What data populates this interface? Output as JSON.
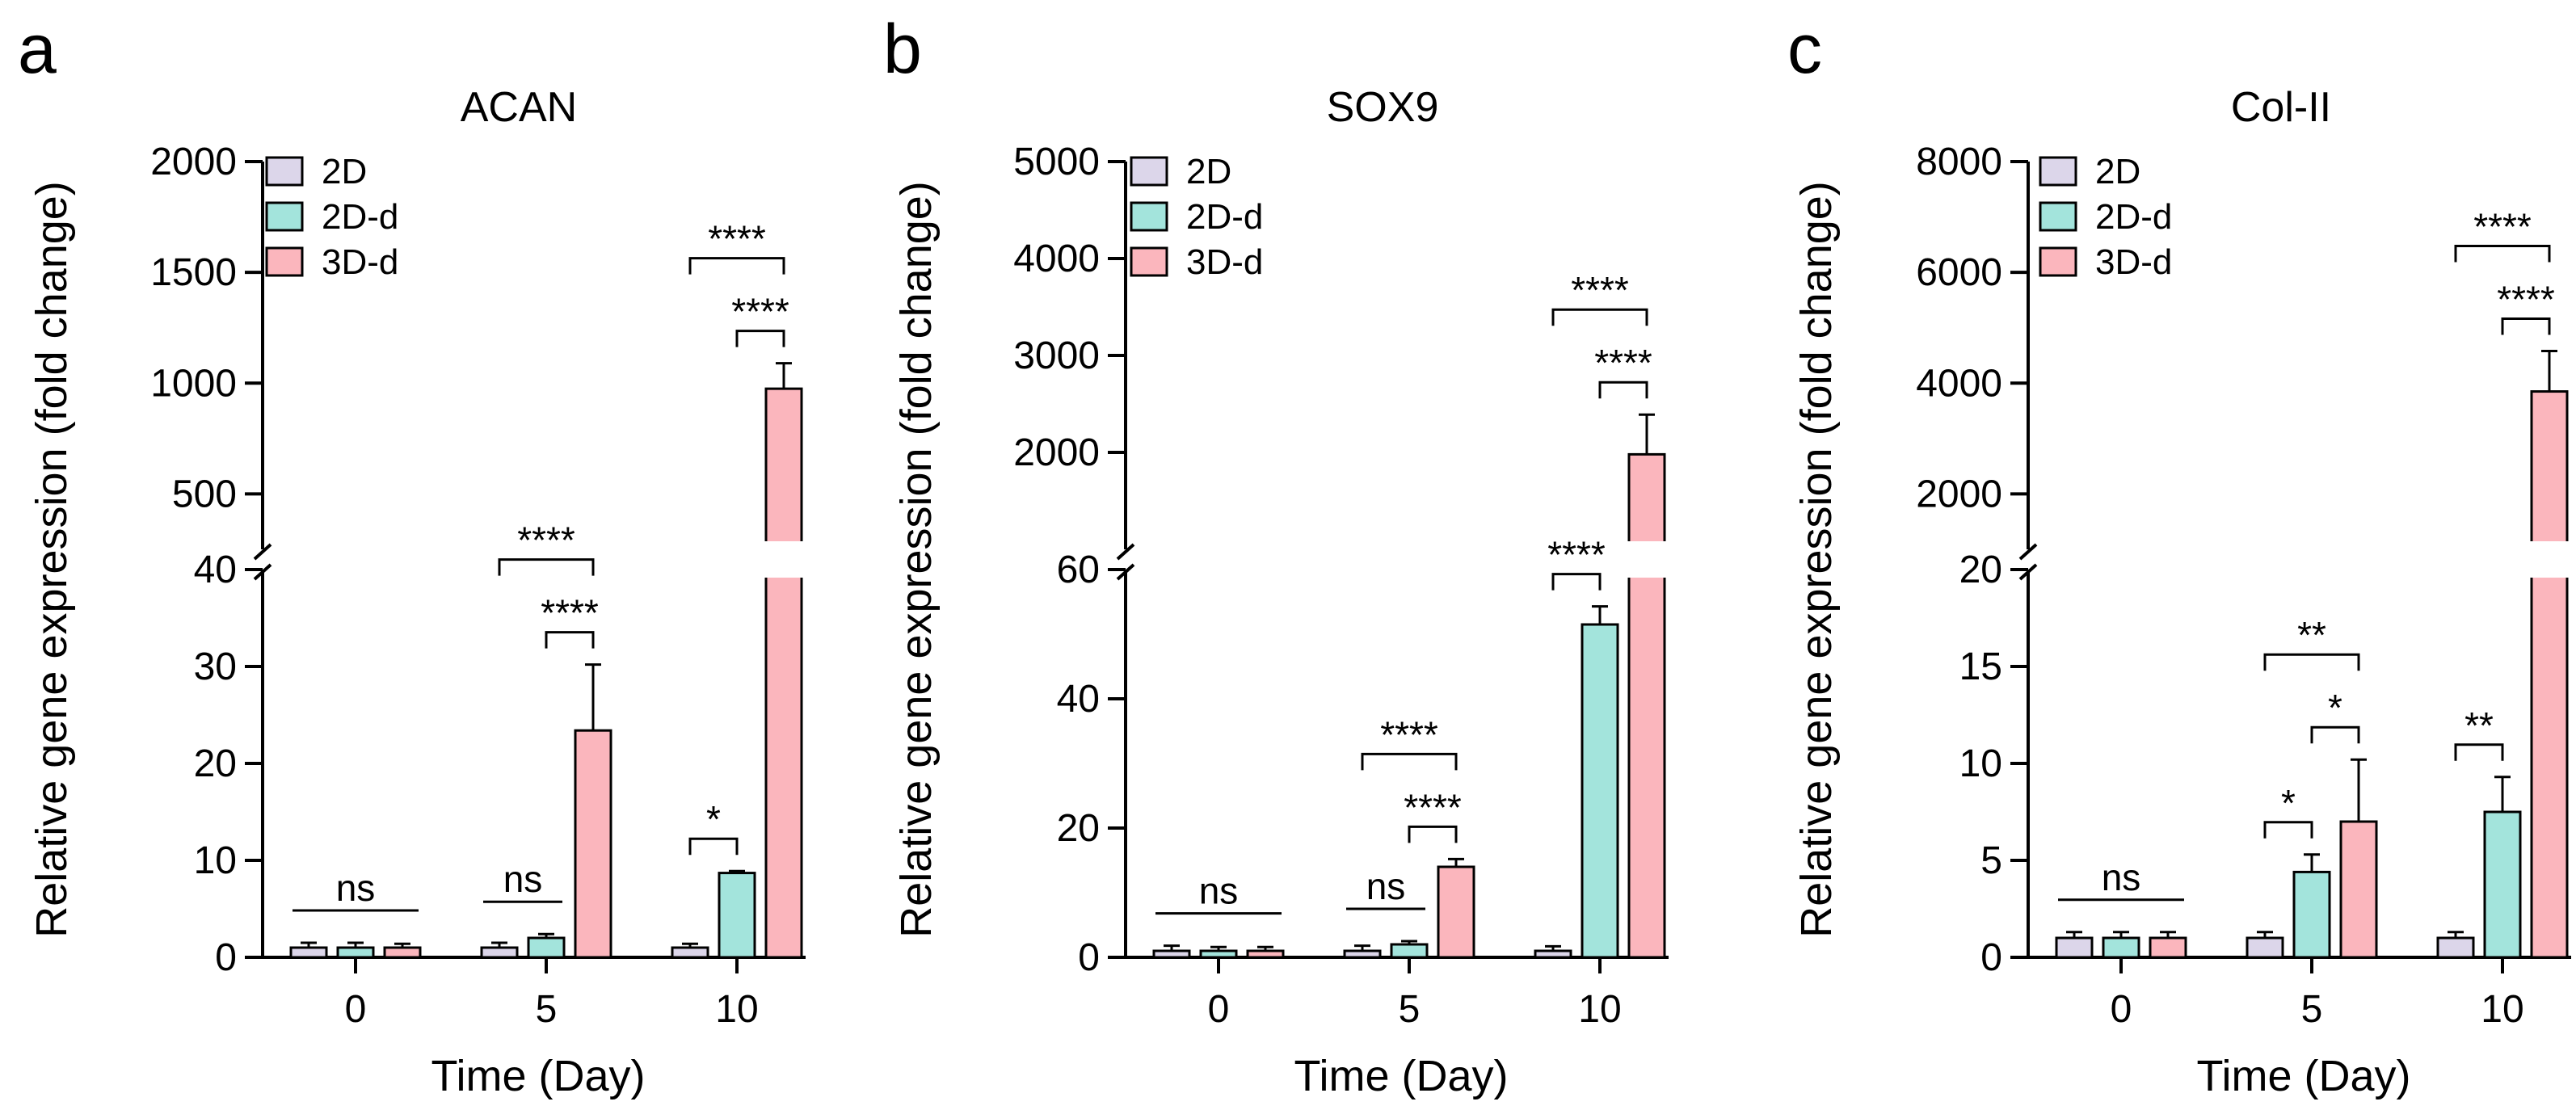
{
  "chart_data": [
    {
      "type": "bar",
      "panel": "a",
      "title": "ACAN",
      "xlabel": "Time (Day)",
      "ylabel": "Relative gene expression (fold change)",
      "categories": [
        "0",
        "5",
        "10"
      ],
      "series": [
        {
          "name": "2D",
          "values": [
            1,
            1,
            1
          ],
          "errors": [
            0.5,
            0.5,
            0.4
          ]
        },
        {
          "name": "2D-d",
          "values": [
            1,
            2,
            8.7
          ],
          "errors": [
            0.5,
            0.4,
            0.2
          ]
        },
        {
          "name": "3D-d",
          "values": [
            1,
            23.4,
            975
          ],
          "errors": [
            0.4,
            6.8,
            115
          ]
        }
      ],
      "axis_break": {
        "lower_range": [
          0,
          40
        ],
        "lower_ticks": [
          "0",
          "10",
          "20",
          "30",
          "40"
        ],
        "upper_range": [
          250,
          2000
        ],
        "upper_ticks": [
          "500",
          "1000",
          "1500",
          "2000"
        ]
      },
      "legend": [
        "2D",
        "2D-d",
        "3D-d"
      ],
      "significance": [
        {
          "group": "0",
          "from": "2D",
          "to": "3D-d",
          "label": "ns"
        },
        {
          "group": "5",
          "from": "2D",
          "to": "2D-d",
          "label": "ns"
        },
        {
          "group": "5",
          "from": "2D-d",
          "to": "3D-d",
          "label": "****"
        },
        {
          "group": "5",
          "from": "2D",
          "to": "3D-d",
          "label": "****"
        },
        {
          "group": "10",
          "from": "2D",
          "to": "2D-d",
          "label": "*"
        },
        {
          "group": "10",
          "from": "2D-d",
          "to": "3D-d",
          "label": "****"
        },
        {
          "group": "10",
          "from": "2D",
          "to": "3D-d",
          "label": "****"
        }
      ]
    },
    {
      "type": "bar",
      "panel": "b",
      "title": "SOX9",
      "xlabel": "Time (Day)",
      "ylabel": "Relative gene expression (fold change)",
      "categories": [
        "0",
        "5",
        "10"
      ],
      "series": [
        {
          "name": "2D",
          "values": [
            1,
            1,
            1
          ],
          "errors": [
            0.8,
            0.8,
            0.7
          ]
        },
        {
          "name": "2D-d",
          "values": [
            1,
            2,
            51.5
          ],
          "errors": [
            0.6,
            0.5,
            2.8
          ]
        },
        {
          "name": "3D-d",
          "values": [
            1,
            14,
            1980
          ],
          "errors": [
            0.6,
            1.2,
            410
          ]
        }
      ],
      "axis_break": {
        "lower_range": [
          0,
          60
        ],
        "lower_ticks": [
          "0",
          "20",
          "40",
          "60"
        ],
        "upper_range": [
          1000,
          5000
        ],
        "upper_ticks": [
          "2000",
          "3000",
          "4000",
          "5000"
        ]
      },
      "legend": [
        "2D",
        "2D-d",
        "3D-d"
      ],
      "significance": [
        {
          "group": "0",
          "from": "2D",
          "to": "3D-d",
          "label": "ns"
        },
        {
          "group": "5",
          "from": "2D",
          "to": "2D-d",
          "label": "ns"
        },
        {
          "group": "5",
          "from": "2D-d",
          "to": "3D-d",
          "label": "****"
        },
        {
          "group": "5",
          "from": "2D",
          "to": "3D-d",
          "label": "****"
        },
        {
          "group": "10",
          "from": "2D",
          "to": "2D-d",
          "label": "****"
        },
        {
          "group": "10",
          "from": "2D-d",
          "to": "3D-d",
          "label": "****"
        },
        {
          "group": "10",
          "from": "2D",
          "to": "3D-d",
          "label": "****"
        }
      ]
    },
    {
      "type": "bar",
      "panel": "c",
      "title": "Col-II",
      "xlabel": "Time (Day)",
      "ylabel": "Relative gene expression (fold change)",
      "categories": [
        "0",
        "5",
        "10"
      ],
      "series": [
        {
          "name": "2D",
          "values": [
            1,
            1,
            1
          ],
          "errors": [
            0.3,
            0.3,
            0.3
          ]
        },
        {
          "name": "2D-d",
          "values": [
            1,
            4.4,
            7.5
          ],
          "errors": [
            0.3,
            0.9,
            1.8
          ]
        },
        {
          "name": "3D-d",
          "values": [
            1,
            7,
            3850
          ],
          "errors": [
            0.3,
            3.2,
            730
          ]
        }
      ],
      "axis_break": {
        "lower_range": [
          0,
          20
        ],
        "lower_ticks": [
          "0",
          "5",
          "10",
          "15",
          "20"
        ],
        "upper_range": [
          1000,
          8000
        ],
        "upper_ticks": [
          "2000",
          "4000",
          "6000",
          "8000"
        ]
      },
      "legend": [
        "2D",
        "2D-d",
        "3D-d"
      ],
      "significance": [
        {
          "group": "0",
          "from": "2D",
          "to": "3D-d",
          "label": "ns"
        },
        {
          "group": "5",
          "from": "2D",
          "to": "2D-d",
          "label": "*"
        },
        {
          "group": "5",
          "from": "2D-d",
          "to": "3D-d",
          "label": "*"
        },
        {
          "group": "5",
          "from": "2D",
          "to": "3D-d",
          "label": "**"
        },
        {
          "group": "10",
          "from": "2D",
          "to": "2D-d",
          "label": "**"
        },
        {
          "group": "10",
          "from": "2D-d",
          "to": "3D-d",
          "label": "****"
        },
        {
          "group": "10",
          "from": "2D",
          "to": "3D-d",
          "label": "****"
        }
      ]
    }
  ],
  "colors": {
    "2D": "#dcd6ea",
    "2D-d": "#a3e4dc",
    "3D-d": "#fbb6bd"
  }
}
